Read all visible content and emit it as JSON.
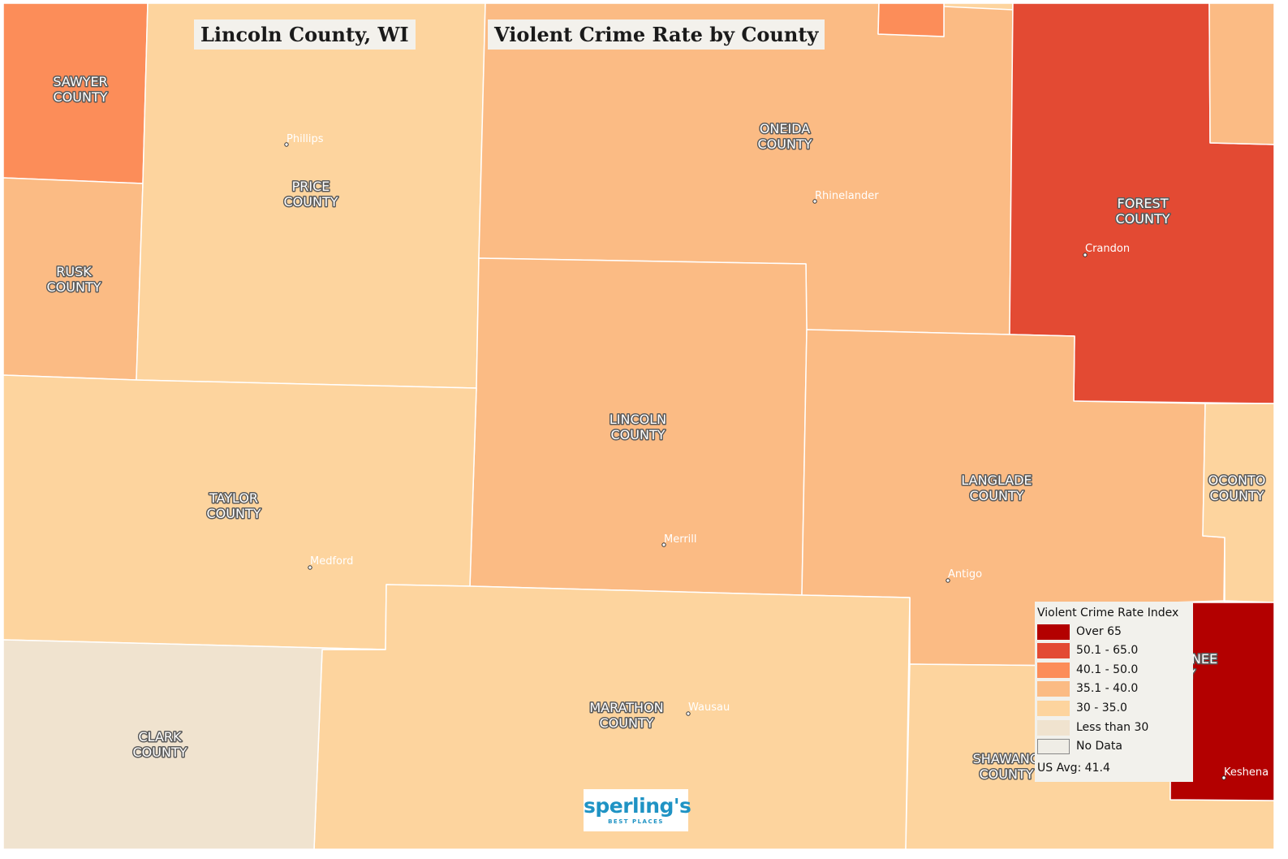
{
  "titles": {
    "location": "Lincoln County, WI",
    "map": "Violent Crime Rate by County"
  },
  "legend": {
    "title": "Violent Crime Rate Index",
    "items": [
      {
        "label": "Over 65",
        "color": "#b30000"
      },
      {
        "label": "50.1 - 65.0",
        "color": "#e34a33"
      },
      {
        "label": "40.1 - 50.0",
        "color": "#fc8d59"
      },
      {
        "label": "35.1 - 40.0",
        "color": "#fbbb84"
      },
      {
        "label": "30 - 35.0",
        "color": "#fdd49e"
      },
      {
        "label": "Less than 30",
        "color": "#f0e3cf"
      },
      {
        "label": "No Data",
        "color": "#efede6"
      }
    ],
    "us_avg": "US Avg: 41.4"
  },
  "counties": [
    {
      "name": "SAWYER COUNTY",
      "line1": "SAWYER",
      "line2": "COUNTY",
      "category": "40.1 - 50.0"
    },
    {
      "name": "RUSK COUNTY",
      "line1": "RUSK",
      "line2": "COUNTY",
      "category": "35.1 - 40.0"
    },
    {
      "name": "PRICE COUNTY",
      "line1": "PRICE",
      "line2": "COUNTY",
      "category": "30 - 35.0"
    },
    {
      "name": "ONEIDA COUNTY",
      "line1": "ONEIDA",
      "line2": "COUNTY",
      "category": "35.1 - 40.0"
    },
    {
      "name": "FOREST COUNTY",
      "line1": "FOREST",
      "line2": "COUNTY",
      "category": "50.1 - 65.0"
    },
    {
      "name": "LINCOLN COUNTY",
      "line1": "LINCOLN",
      "line2": "COUNTY",
      "category": "35.1 - 40.0"
    },
    {
      "name": "TAYLOR COUNTY",
      "line1": "TAYLOR",
      "line2": "COUNTY",
      "category": "30 - 35.0"
    },
    {
      "name": "LANGLADE COUNTY",
      "line1": "LANGLADE",
      "line2": "COUNTY",
      "category": "35.1 - 40.0"
    },
    {
      "name": "OCONTO COUNTY",
      "line1": "OCONTO",
      "line2": "COUNTY",
      "category": "30 - 35.0"
    },
    {
      "name": "MARATHON COUNTY",
      "line1": "MARATHON",
      "line2": "COUNTY",
      "category": "30 - 35.0"
    },
    {
      "name": "CLARK COUNTY",
      "line1": "CLARK",
      "line2": "COUNTY",
      "category": "Less than 30"
    },
    {
      "name": "SHAWANO COUNTY",
      "line1": "SHAWANO",
      "line2": "COUNTY",
      "category": "30 - 35.0"
    },
    {
      "name": "MENOMINEE COUNTY",
      "line1": "NEE",
      "line2": "Y",
      "category": "Over 65"
    }
  ],
  "cities": [
    "Phillips",
    "Rhinelander",
    "Crandon",
    "Merrill",
    "Medford",
    "Antigo",
    "Wausau",
    "Keshena"
  ],
  "logo": {
    "brand": "sperling's",
    "tagline": "BEST PLACES"
  }
}
